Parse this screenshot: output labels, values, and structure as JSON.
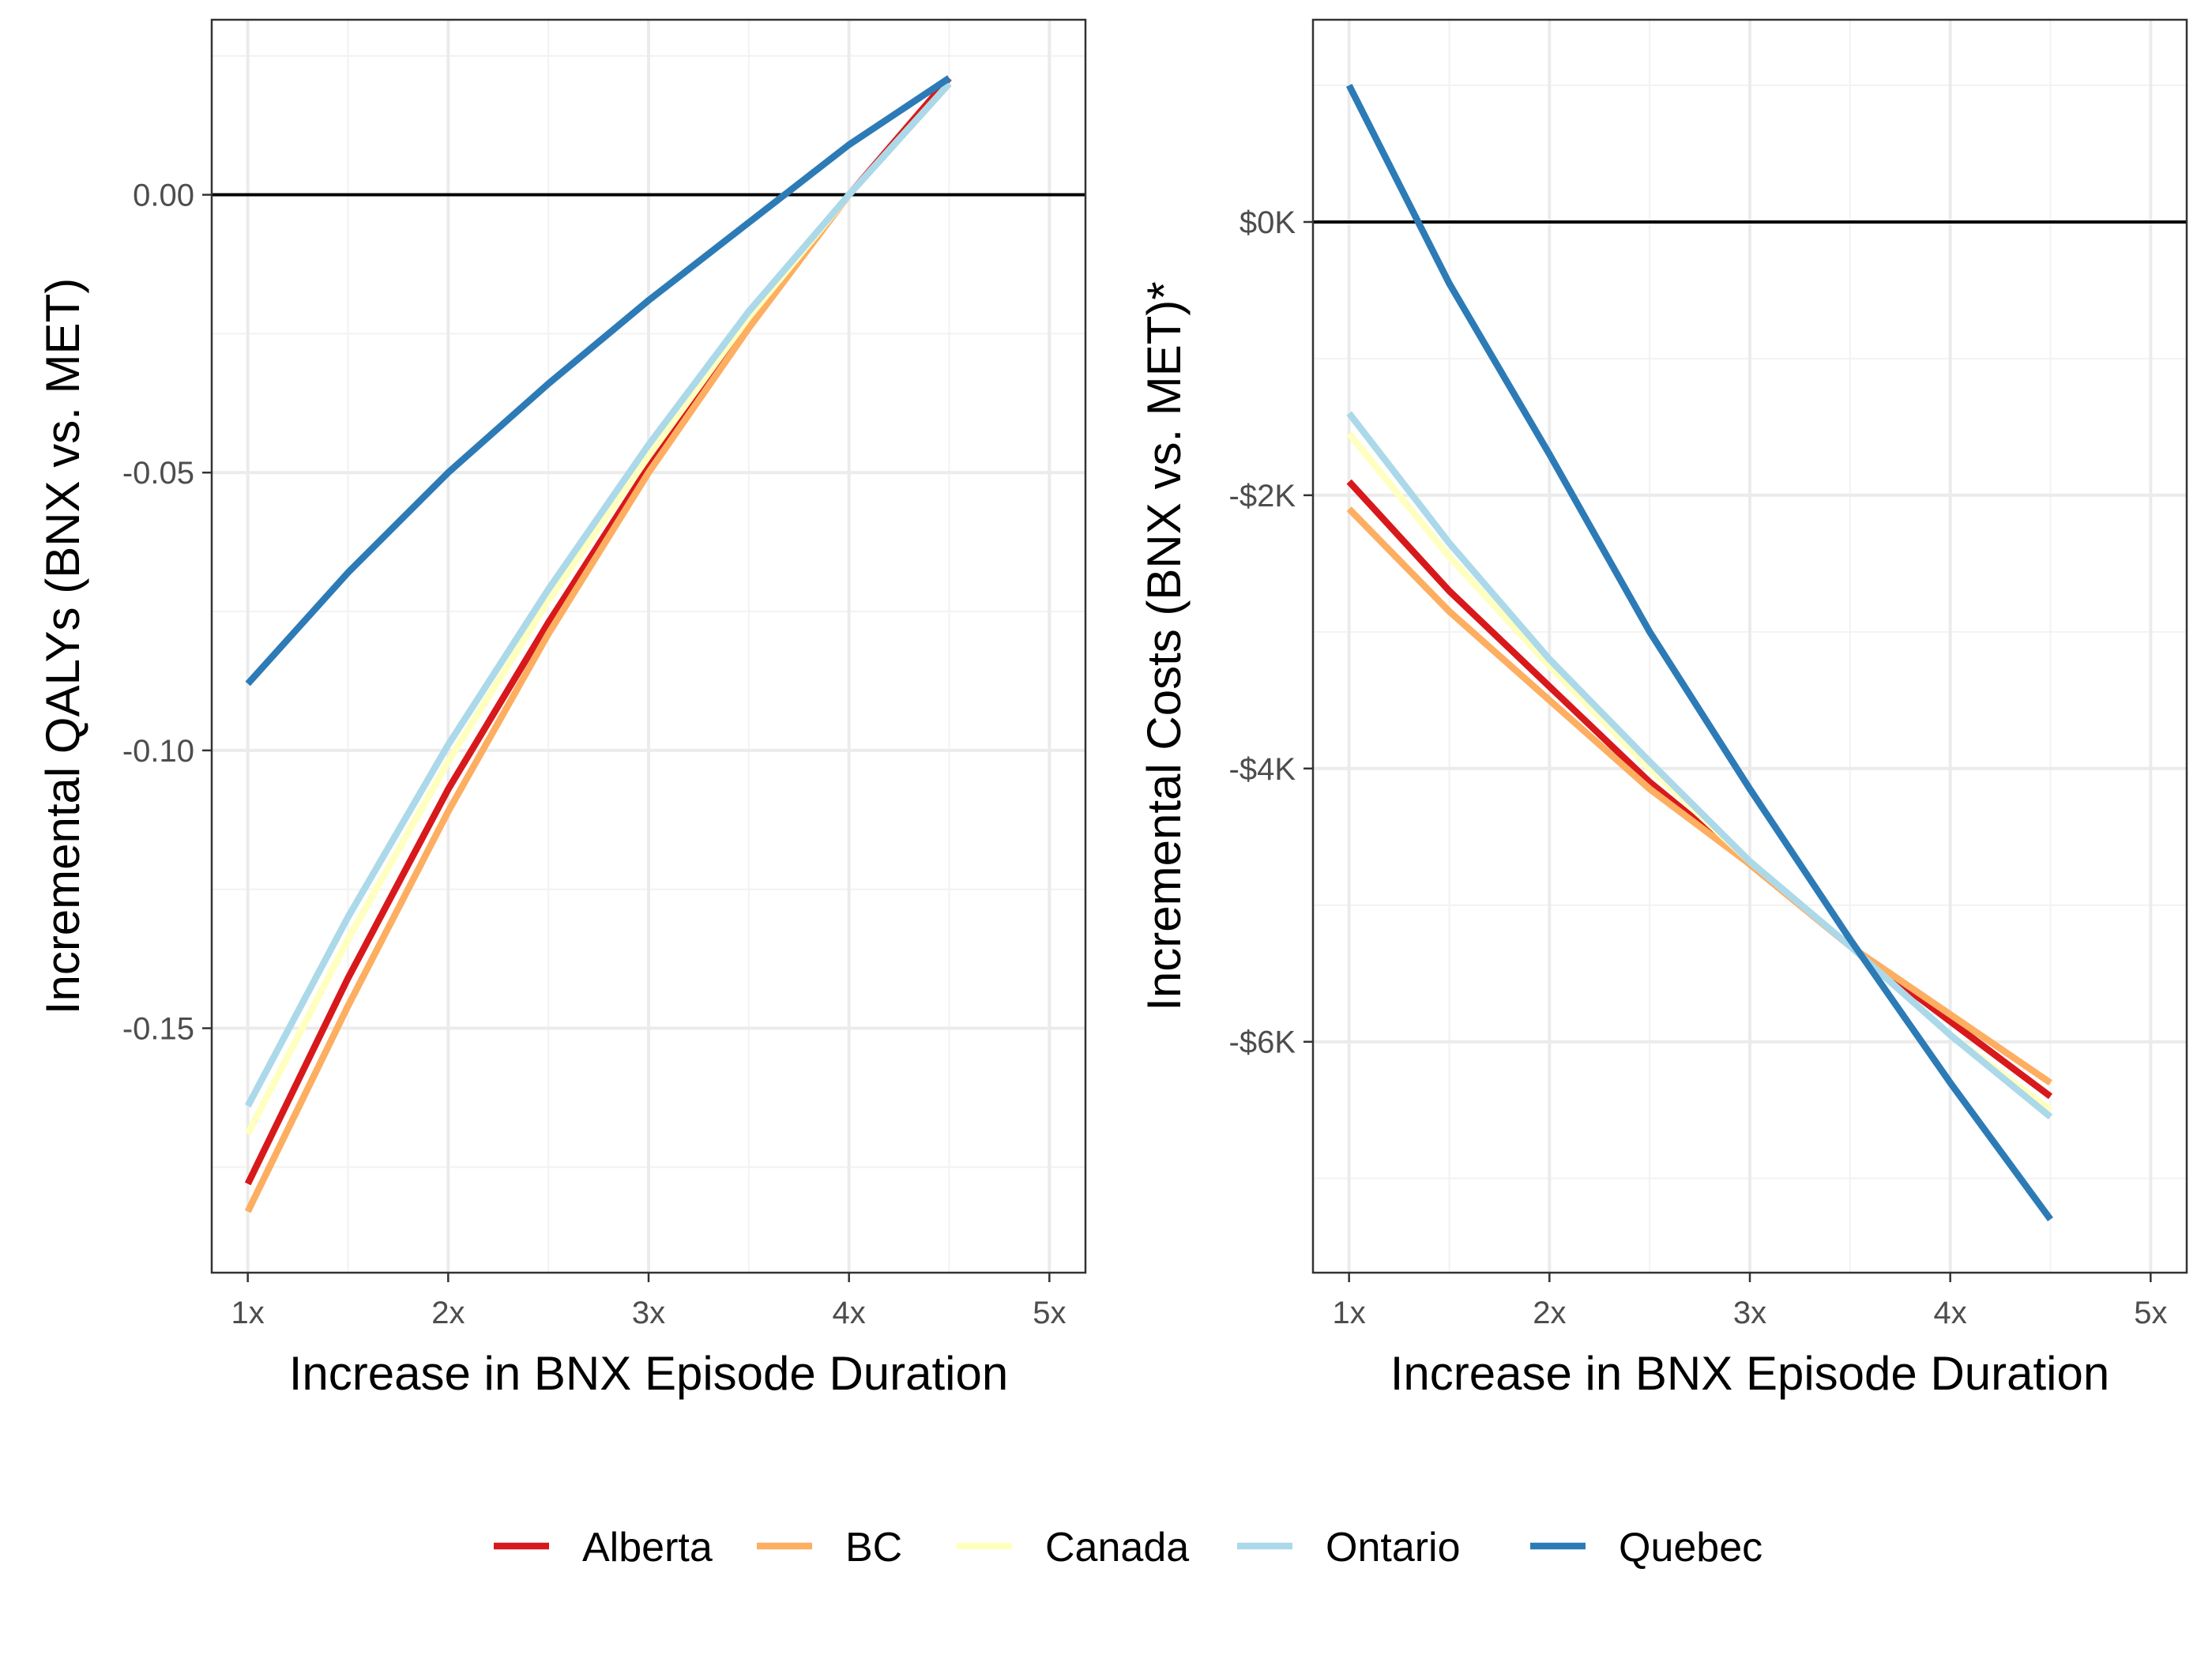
{
  "chart_data": [
    {
      "type": "line",
      "xlabel": "Increase in BNX Episode Duration",
      "ylabel": "Incremental QALYs (BNX vs. MET)",
      "x_ticks": [
        {
          "value": 1,
          "label": "1x"
        },
        {
          "value": 2,
          "label": "2x"
        },
        {
          "value": 3,
          "label": "3x"
        },
        {
          "value": 4,
          "label": "4x"
        },
        {
          "value": 5,
          "label": "5x"
        }
      ],
      "y_ticks": [
        {
          "value": 0,
          "label": "0.00"
        },
        {
          "value": -0.05,
          "label": "-0.05"
        },
        {
          "value": -0.1,
          "label": "-0.10"
        },
        {
          "value": -0.15,
          "label": "-0.15"
        }
      ],
      "xlim": [
        0.82,
        5.18
      ],
      "ylim": [
        -0.194,
        0.0315
      ],
      "grid": true,
      "reference_line_y": 0,
      "series": [
        {
          "name": "Alberta",
          "x": [
            1,
            1.5,
            2,
            2.5,
            3,
            3.5,
            4,
            4.5
          ],
          "y": [
            -0.178,
            -0.141,
            -0.107,
            -0.077,
            -0.049,
            -0.023,
            0.0,
            0.021
          ]
        },
        {
          "name": "BC",
          "x": [
            1,
            1.5,
            2,
            2.5,
            3,
            3.5,
            4,
            4.5
          ],
          "y": [
            -0.183,
            -0.146,
            -0.111,
            -0.079,
            -0.05,
            -0.024,
            0.0,
            0.02
          ]
        },
        {
          "name": "Canada",
          "x": [
            1,
            1.5,
            2,
            2.5,
            3,
            3.5,
            4,
            4.5
          ],
          "y": [
            -0.169,
            -0.134,
            -0.102,
            -0.073,
            -0.047,
            -0.022,
            0.0,
            0.02
          ]
        },
        {
          "name": "Ontario",
          "x": [
            1,
            1.5,
            2,
            2.5,
            3,
            3.5,
            4,
            4.5
          ],
          "y": [
            -0.164,
            -0.13,
            -0.099,
            -0.071,
            -0.045,
            -0.021,
            0.0,
            0.02
          ]
        },
        {
          "name": "Quebec",
          "x": [
            1,
            1.5,
            2,
            2.5,
            3,
            3.5,
            4,
            4.5
          ],
          "y": [
            -0.088,
            -0.068,
            -0.05,
            -0.034,
            -0.019,
            -0.005,
            0.009,
            0.021
          ]
        }
      ]
    },
    {
      "type": "line",
      "xlabel": "Increase in BNX Episode Duration",
      "ylabel": "Incremental Costs (BNX vs. MET)*",
      "x_ticks": [
        {
          "value": 1,
          "label": "1x"
        },
        {
          "value": 2,
          "label": "2x"
        },
        {
          "value": 3,
          "label": "3x"
        },
        {
          "value": 4,
          "label": "4x"
        },
        {
          "value": 5,
          "label": "5x"
        }
      ],
      "y_ticks": [
        {
          "value": 0,
          "label": "$0K"
        },
        {
          "value": -2000,
          "label": "-$2K"
        },
        {
          "value": -4000,
          "label": "-$4K"
        },
        {
          "value": -6000,
          "label": "-$6K"
        }
      ],
      "xlim": [
        0.82,
        5.18
      ],
      "ylim": [
        -7690,
        1480
      ],
      "grid": true,
      "reference_line_y": 0,
      "series": [
        {
          "name": "Alberta",
          "x": [
            1,
            1.5,
            2,
            2.5,
            3,
            3.5,
            4,
            4.5
          ],
          "y": [
            -1900,
            -2700,
            -3400,
            -4100,
            -4700,
            -5300,
            -5850,
            -6400
          ]
        },
        {
          "name": "BC",
          "x": [
            1,
            1.5,
            2,
            2.5,
            3,
            3.5,
            4,
            4.5
          ],
          "y": [
            -2100,
            -2850,
            -3500,
            -4150,
            -4700,
            -5300,
            -5800,
            -6300
          ]
        },
        {
          "name": "Canada",
          "x": [
            1,
            1.5,
            2,
            2.5,
            3,
            3.5,
            4,
            4.5
          ],
          "y": [
            -1550,
            -2450,
            -3250,
            -4000,
            -4680,
            -5300,
            -5950,
            -6500
          ]
        },
        {
          "name": "Ontario",
          "x": [
            1,
            1.5,
            2,
            2.5,
            3,
            3.5,
            4,
            4.5
          ],
          "y": [
            -1400,
            -2350,
            -3200,
            -3950,
            -4680,
            -5300,
            -5950,
            -6550
          ]
        },
        {
          "name": "Quebec",
          "x": [
            1,
            1.5,
            2,
            2.5,
            3,
            3.5,
            4,
            4.5
          ],
          "y": [
            1000,
            -450,
            -1700,
            -3000,
            -4150,
            -5250,
            -6300,
            -7300
          ]
        }
      ]
    }
  ],
  "legend": {
    "placement": "bottom",
    "items": [
      {
        "name": "Alberta",
        "color": "#d7191c"
      },
      {
        "name": "BC",
        "color": "#fdae61"
      },
      {
        "name": "Canada",
        "color": "#ffffbf"
      },
      {
        "name": "Ontario",
        "color": "#abd9e9"
      },
      {
        "name": "Quebec",
        "color": "#2c7bb6"
      }
    ]
  }
}
